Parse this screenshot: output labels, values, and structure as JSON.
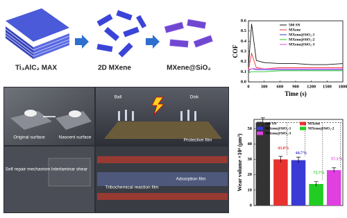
{
  "labels": {
    "max": "Ti₃AlC₂ MAX",
    "mxene": "2D MXene",
    "composite": "MXene@SiO₂",
    "original_surface": "Original surface",
    "nascent_surface": "Nascent surface",
    "ball": "Ball",
    "disk": "Disk",
    "protective_film": "Protective film",
    "self_repair": "Self repair mechanism",
    "interlaminar_shear": "Interlaminar shear",
    "tribochemical_film": "Tribochemical reaction film",
    "adsorption_film": "Adsorption film"
  },
  "chart_data": [
    {
      "type": "line",
      "ylabel": "COF",
      "xlabel": "Time (s)",
      "x": [
        0,
        60,
        150,
        300,
        600,
        900,
        1200,
        1500,
        1800
      ],
      "xlim": [
        0,
        1800
      ],
      "xticks": [
        0,
        300,
        600,
        900,
        1200,
        1500,
        1800
      ],
      "ylim": [
        0,
        0.6
      ],
      "yticks": [
        {
          "value": 0,
          "label": "0.0"
        },
        0.1,
        0.2,
        0.3,
        0.4,
        0.5,
        0.6
      ],
      "series": [
        {
          "name": "500 SN",
          "color": "#111111",
          "values": [
            0.15,
            0.57,
            0.21,
            0.19,
            0.18,
            0.18,
            0.17,
            0.17,
            0.18
          ]
        },
        {
          "name": "MXene",
          "color": "#e8322f",
          "values": [
            0.12,
            0.28,
            0.14,
            0.13,
            0.14,
            0.14,
            0.14,
            0.14,
            0.14
          ]
        },
        {
          "name": "MXene@SiO₂-1",
          "color": "#3a3ad6",
          "values": [
            0.11,
            0.13,
            0.12,
            0.12,
            0.12,
            0.12,
            0.12,
            0.12,
            0.12
          ]
        },
        {
          "name": "MXene@SiO₂-2",
          "color": "#22cc22",
          "values": [
            0.09,
            0.1,
            0.1,
            0.1,
            0.11,
            0.11,
            0.11,
            0.11,
            0.11
          ]
        },
        {
          "name": "MXene@SiO₂-3",
          "color": "#e040e0",
          "values": [
            0.12,
            0.13,
            0.13,
            0.13,
            0.13,
            0.13,
            0.13,
            0.13,
            0.13
          ]
        }
      ]
    },
    {
      "type": "bar",
      "ylabel": "Wear volume ×10⁴ (μm³)",
      "categories": [
        "500 SN",
        "MXene",
        "MXene@SiO₂-1",
        "MXene@SiO₂-2",
        "MXene@SiO₂-3"
      ],
      "values": [
        54,
        30,
        29.5,
        14,
        23
      ],
      "errors": [
        3,
        2,
        2,
        1.5,
        1.5
      ],
      "colors": [
        "#333333",
        "#e8322f",
        "#3a3ad6",
        "#22cc22",
        "#e040e0"
      ],
      "ylim": [
        0,
        56
      ],
      "yticks": [
        0,
        10,
        20,
        30,
        40,
        50
      ],
      "annotations": [
        "43.8%",
        "44.7%",
        "73.7%",
        "57.1%"
      ]
    }
  ]
}
